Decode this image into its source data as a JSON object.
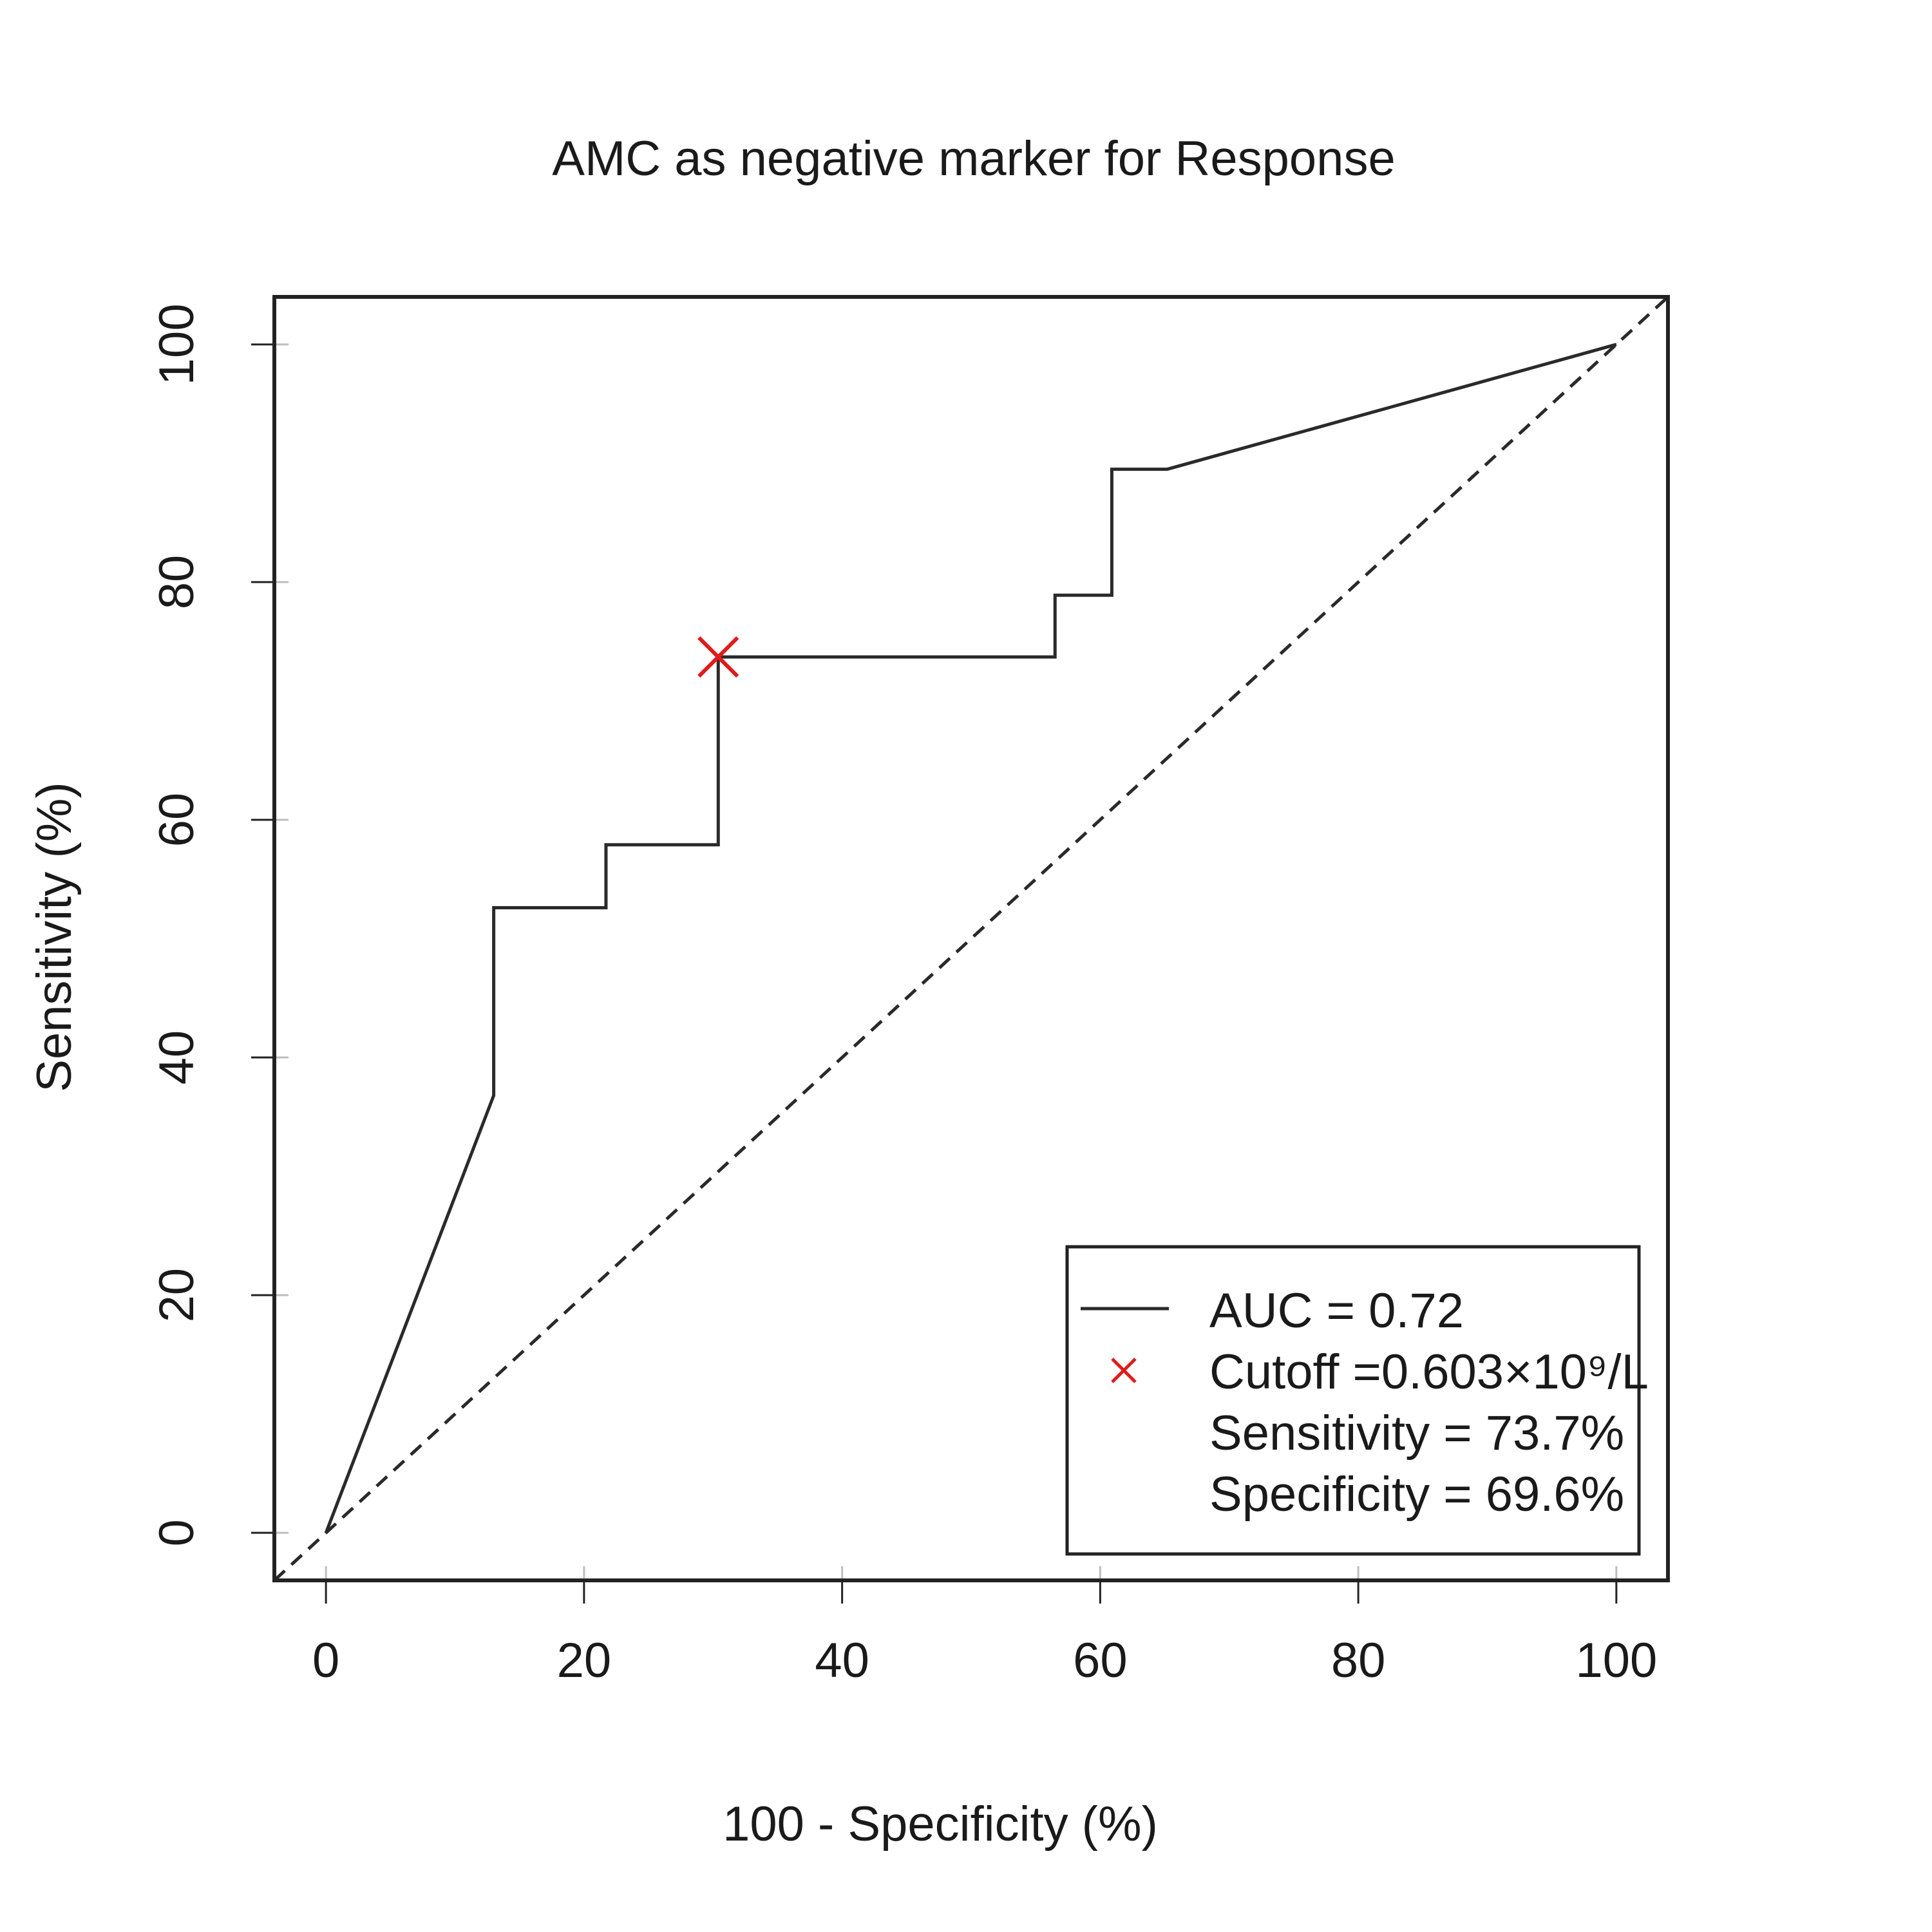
{
  "chart_data": {
    "type": "line",
    "title": "AMC as negative marker for Response",
    "xlabel": "100 - Specificity (%)",
    "ylabel": "Sensitivity (%)",
    "xlim": [
      -4,
      104
    ],
    "ylim": [
      -4,
      104
    ],
    "xticks": [
      0,
      20,
      40,
      60,
      80,
      100
    ],
    "yticks": [
      0,
      20,
      40,
      60,
      80,
      100
    ],
    "grid": false,
    "legend_position": "bottom-right",
    "series": [
      {
        "name": "AUC = 0.72",
        "color": "#2a2a2a",
        "style": "solid",
        "x": [
          0,
          13.0,
          13.0,
          21.7,
          21.7,
          30.4,
          30.4,
          56.5,
          56.5,
          60.9,
          60.9,
          65.2,
          100
        ],
        "y": [
          0,
          36.8,
          52.6,
          52.6,
          57.9,
          57.9,
          73.7,
          73.7,
          78.9,
          78.9,
          89.5,
          89.5,
          100
        ]
      }
    ],
    "reference_line": {
      "x": [
        -4,
        104
      ],
      "y": [
        -4,
        104
      ],
      "style": "dashed",
      "color": "#2a2a2a"
    },
    "cutoff_point": {
      "x": 30.4,
      "y": 73.7,
      "marker": "x",
      "color": "#e01b1b"
    },
    "legend": {
      "items": [
        {
          "symbol": "line",
          "text": "AUC = 0.72"
        },
        {
          "symbol": "x",
          "text": "Cutoff =0.603×10⁹/L"
        },
        {
          "symbol": "none",
          "text": "Sensitivity = 73.7%"
        },
        {
          "symbol": "none",
          "text": "Specificity = 69.6%"
        }
      ]
    }
  }
}
